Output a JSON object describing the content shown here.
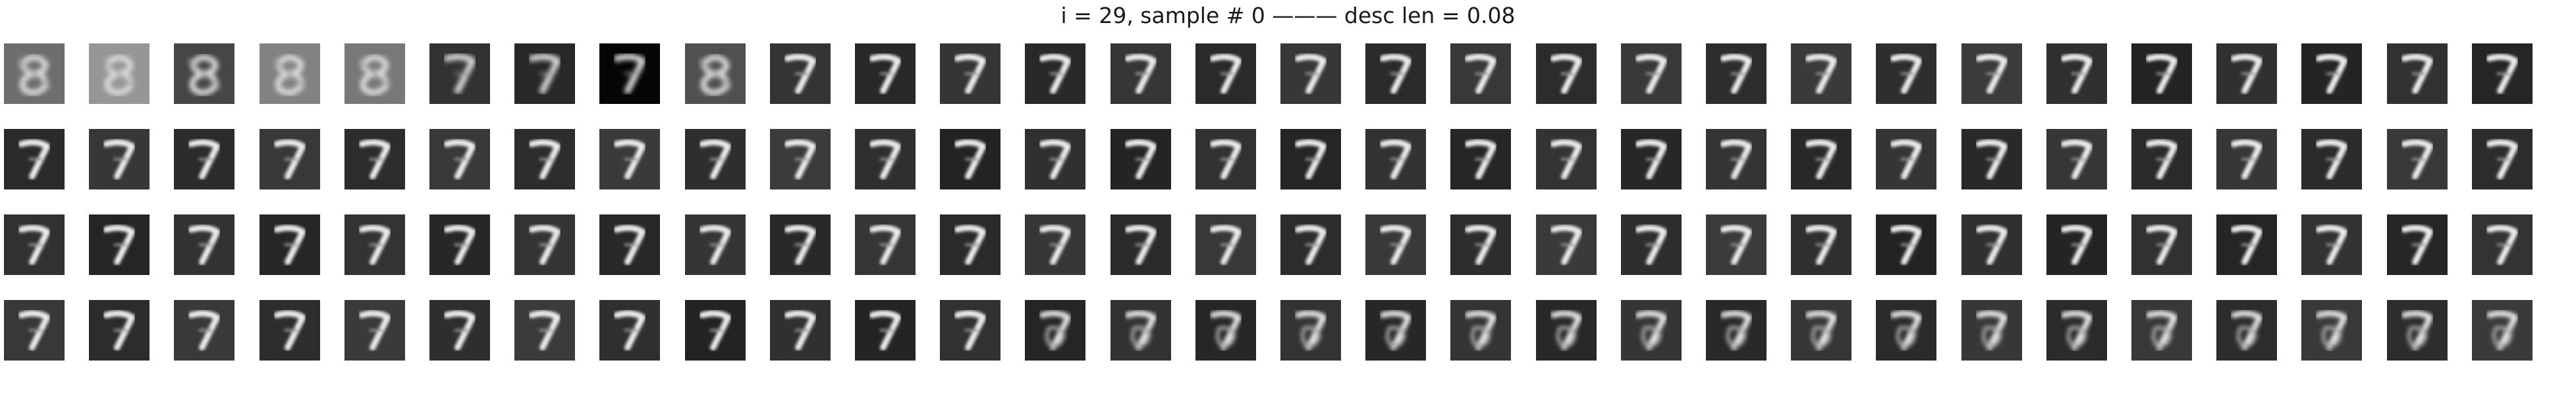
{
  "figure": {
    "title": "i = 29, sample # 0 ——— desc len = 0.08"
  },
  "grid": {
    "rows": 4,
    "cols": 30,
    "content": "reconstruction images of a handwritten digit 7"
  },
  "colors": {
    "background": "#ffffff",
    "tile_dark": "#141414",
    "stroke": "#e8e8e8"
  }
}
